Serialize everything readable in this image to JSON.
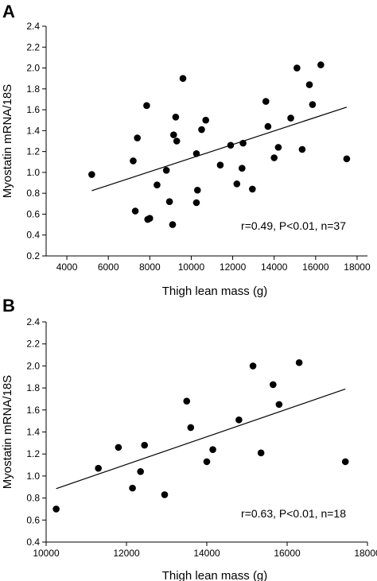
{
  "chart_data": [
    {
      "type": "scatter",
      "panel": "A",
      "xlabel": "Thigh lean mass (g)",
      "ylabel": "Myostatin mRNA/18S",
      "xlim": [
        3000,
        18500
      ],
      "ylim": [
        0.2,
        2.4
      ],
      "xticks": [
        4000,
        6000,
        8000,
        10000,
        12000,
        14000,
        16000,
        18000
      ],
      "yticks": [
        0.2,
        0.4,
        0.6,
        0.8,
        1.0,
        1.2,
        1.4,
        1.6,
        1.8,
        2.0,
        2.2,
        2.4
      ],
      "annotation": "r=0.49, P<0.01, n=37",
      "grid": false,
      "trendline": {
        "x": [
          5200,
          17500
        ],
        "y": [
          0.825,
          1.625
        ]
      },
      "points": [
        [
          5200,
          0.98
        ],
        [
          7200,
          1.11
        ],
        [
          7300,
          0.63
        ],
        [
          7400,
          1.33
        ],
        [
          7850,
          1.64
        ],
        [
          7900,
          0.55
        ],
        [
          8000,
          0.56
        ],
        [
          8350,
          0.88
        ],
        [
          8800,
          1.02
        ],
        [
          8950,
          0.72
        ],
        [
          9100,
          0.5
        ],
        [
          9150,
          1.36
        ],
        [
          9250,
          1.53
        ],
        [
          9300,
          1.3
        ],
        [
          9600,
          1.9
        ],
        [
          10250,
          0.71
        ],
        [
          10250,
          1.18
        ],
        [
          10300,
          0.83
        ],
        [
          10500,
          1.41
        ],
        [
          10700,
          1.5
        ],
        [
          11400,
          1.07
        ],
        [
          11900,
          1.26
        ],
        [
          12200,
          0.89
        ],
        [
          12450,
          1.04
        ],
        [
          12500,
          1.28
        ],
        [
          12950,
          0.84
        ],
        [
          13600,
          1.68
        ],
        [
          13700,
          1.44
        ],
        [
          14000,
          1.14
        ],
        [
          14200,
          1.24
        ],
        [
          14800,
          1.52
        ],
        [
          15100,
          2.0
        ],
        [
          15350,
          1.22
        ],
        [
          15700,
          1.84
        ],
        [
          15850,
          1.65
        ],
        [
          16250,
          2.03
        ],
        [
          17500,
          1.13
        ]
      ]
    },
    {
      "type": "scatter",
      "panel": "B",
      "xlabel": "Thigh lean mass (g)",
      "ylabel": "Myostatin mRNA/18S",
      "xlim": [
        10000,
        18000
      ],
      "ylim": [
        0.4,
        2.4
      ],
      "xticks": [
        10000,
        12000,
        14000,
        16000,
        18000
      ],
      "yticks": [
        0.4,
        0.6,
        0.8,
        1.0,
        1.2,
        1.4,
        1.6,
        1.8,
        2.0,
        2.2,
        2.4
      ],
      "annotation": "r=0.63, P<0.01, n=18",
      "grid": false,
      "trendline": {
        "x": [
          10250,
          17450
        ],
        "y": [
          0.885,
          1.79
        ]
      },
      "points": [
        [
          10250,
          0.7
        ],
        [
          11300,
          1.07
        ],
        [
          11800,
          1.26
        ],
        [
          12150,
          0.89
        ],
        [
          12350,
          1.04
        ],
        [
          12450,
          1.28
        ],
        [
          12950,
          0.83
        ],
        [
          13500,
          1.68
        ],
        [
          13600,
          1.44
        ],
        [
          14000,
          1.13
        ],
        [
          14150,
          1.24
        ],
        [
          14800,
          1.51
        ],
        [
          15150,
          2.0
        ],
        [
          15350,
          1.21
        ],
        [
          15650,
          1.83
        ],
        [
          15800,
          1.65
        ],
        [
          16300,
          2.03
        ],
        [
          17450,
          1.13
        ]
      ]
    }
  ]
}
